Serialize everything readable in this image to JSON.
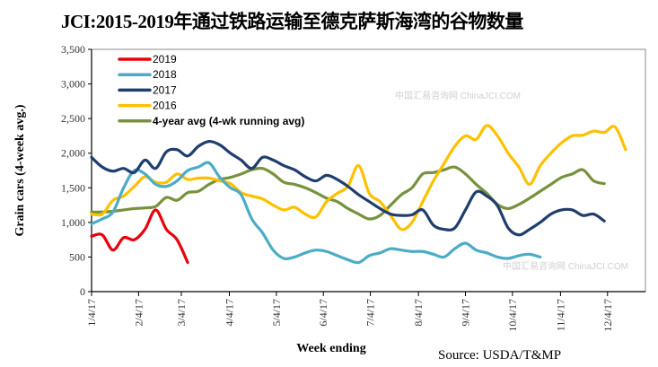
{
  "title": "JCI:2015-2019年通过铁路运输至德克萨斯海湾的谷物数量",
  "source": "Source: USDA/T&MP",
  "watermark": "中国汇易咨询网 ChinaJCI.COM",
  "chart_data": {
    "type": "line",
    "title": "JCI:2015-2019年通过铁路运输至德克萨斯海湾的谷物数量",
    "xlabel": "Week ending",
    "ylabel": "Grain cars (4-week avg.)",
    "ylim": [
      0,
      3500
    ],
    "yticks": [
      0,
      500,
      1000,
      1500,
      2000,
      2500,
      3000,
      3500
    ],
    "ytick_labels": [
      "0",
      "500",
      "1,000",
      "1,500",
      "2,000",
      "2,500",
      "3,000",
      "3,500"
    ],
    "xticks_week_index": [
      0,
      4.4,
      8.4,
      12.9,
      17.3,
      21.7,
      26.1,
      30.6,
      35,
      39.4,
      43.9,
      48.3
    ],
    "xtick_labels": [
      "1/4/17",
      "2/4/17",
      "3/4/17",
      "4/4/17",
      "5/4/17",
      "6/4/17",
      "7/4/17",
      "8/4/17",
      "9/4/17",
      "10/4/17",
      "11/4/17",
      "12/4/17"
    ],
    "x_weeks": 52,
    "legend_position": "top-left",
    "grid": false,
    "series": [
      {
        "name": "2019",
        "color": "#e8000b",
        "values": [
          800,
          820,
          600,
          780,
          750,
          900,
          1180,
          900,
          750,
          420
        ]
      },
      {
        "name": "2018",
        "color": "#4bacc6",
        "values": [
          980,
          1050,
          1150,
          1500,
          1750,
          1700,
          1550,
          1520,
          1600,
          1750,
          1800,
          1860,
          1650,
          1500,
          1400,
          1050,
          850,
          600,
          480,
          500,
          560,
          600,
          580,
          520,
          460,
          420,
          520,
          560,
          620,
          600,
          580,
          580,
          540,
          500,
          620,
          700,
          600,
          560,
          500,
          480,
          520,
          540,
          500
        ]
      },
      {
        "name": "2017",
        "color": "#1f3e6e",
        "values": [
          1940,
          1800,
          1740,
          1780,
          1720,
          1900,
          1780,
          2020,
          2050,
          1960,
          2100,
          2170,
          2120,
          2000,
          1900,
          1780,
          1940,
          1900,
          1820,
          1760,
          1660,
          1600,
          1680,
          1620,
          1520,
          1400,
          1300,
          1200,
          1120,
          1100,
          1110,
          1180,
          960,
          900,
          920,
          1180,
          1440,
          1380,
          1240,
          920,
          820,
          900,
          1000,
          1120,
          1180,
          1180,
          1100,
          1120,
          1020
        ]
      },
      {
        "name": "2016",
        "color": "#ffc000",
        "values": [
          1120,
          1120,
          1320,
          1380,
          1520,
          1660,
          1580,
          1580,
          1700,
          1620,
          1640,
          1640,
          1600,
          1560,
          1430,
          1380,
          1340,
          1250,
          1180,
          1220,
          1120,
          1080,
          1300,
          1420,
          1520,
          1820,
          1420,
          1300,
          1100,
          900,
          1000,
          1300,
          1600,
          1850,
          2100,
          2250,
          2200,
          2400,
          2250,
          2000,
          1800,
          1550,
          1820,
          2000,
          2150,
          2250,
          2260,
          2320,
          2300,
          2380,
          2050
        ]
      },
      {
        "name": "4-year avg (4-wk running avg)",
        "color": "#76923c",
        "values": [
          1150,
          1150,
          1160,
          1180,
          1200,
          1210,
          1230,
          1360,
          1320,
          1430,
          1450,
          1550,
          1620,
          1650,
          1700,
          1760,
          1780,
          1700,
          1580,
          1550,
          1500,
          1430,
          1350,
          1300,
          1200,
          1120,
          1050,
          1100,
          1250,
          1400,
          1500,
          1700,
          1720,
          1760,
          1800,
          1700,
          1550,
          1420,
          1260,
          1200,
          1260,
          1350,
          1450,
          1550,
          1650,
          1700,
          1760,
          1600,
          1560
        ]
      }
    ]
  }
}
